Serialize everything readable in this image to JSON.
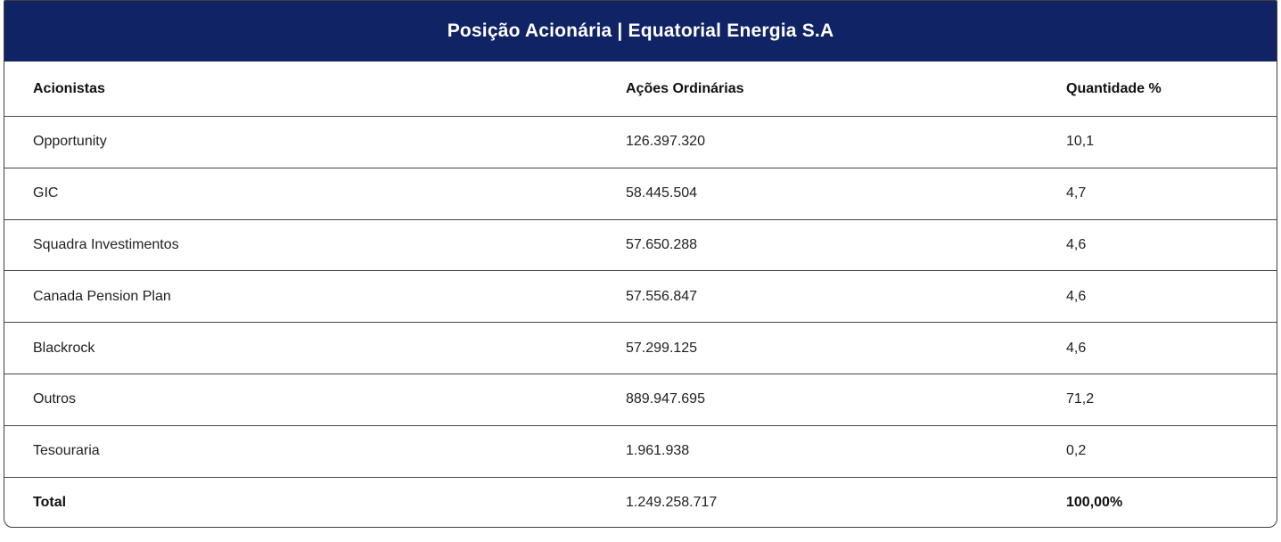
{
  "header": {
    "title": "Posição Acionária | Equatorial Energia S.A",
    "bg_color": "#0f2365",
    "text_color": "#ffffff"
  },
  "table": {
    "columns": [
      "Acionistas",
      "Ações Ordinárias",
      "Quantidade %"
    ],
    "rows": [
      {
        "name": "Opportunity",
        "shares": "126.397.320",
        "pct": "10,1"
      },
      {
        "name": "GIC",
        "shares": "58.445.504",
        "pct": "4,7"
      },
      {
        "name": "Squadra Investimentos",
        "shares": "57.650.288",
        "pct": "4,6"
      },
      {
        "name": "Canada Pension Plan",
        "shares": "57.556.847",
        "pct": "4,6"
      },
      {
        "name": "Blackrock",
        "shares": "57.299.125",
        "pct": "4,6"
      },
      {
        "name": "Outros",
        "shares": "889.947.695",
        "pct": "71,2"
      },
      {
        "name": "Tesouraria",
        "shares": "1.961.938",
        "pct": "0,2"
      }
    ],
    "total": {
      "name": "Total",
      "shares": "1.249.258.717",
      "pct": "100,00%"
    }
  }
}
